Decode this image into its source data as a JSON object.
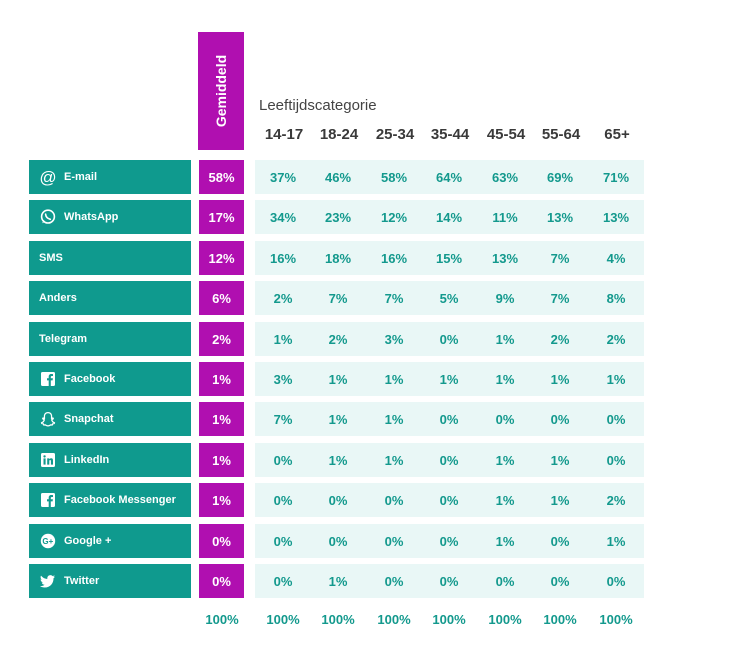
{
  "avg_header": "Gemiddeld",
  "category_title": "Leeftijdscategorie",
  "colors": {
    "teal": "#0f9a8e",
    "magenta": "#b00fb0",
    "cell_bg": "#e9f7f6",
    "value_text": "#13998d"
  },
  "chart_data": {
    "type": "table",
    "columns": [
      "14-17",
      "18-24",
      "25-34",
      "35-44",
      "45-54",
      "55-64",
      "65+"
    ],
    "rows": [
      {
        "label": "E-mail",
        "icon": "at-sign-icon",
        "avg": "58%",
        "values": [
          "37%",
          "46%",
          "58%",
          "64%",
          "63%",
          "69%",
          "71%"
        ]
      },
      {
        "label": "WhatsApp",
        "icon": "whatsapp-icon",
        "avg": "17%",
        "values": [
          "34%",
          "23%",
          "12%",
          "14%",
          "11%",
          "13%",
          "13%"
        ]
      },
      {
        "label": "SMS",
        "icon": "",
        "avg": "12%",
        "values": [
          "16%",
          "18%",
          "16%",
          "15%",
          "13%",
          "7%",
          "4%"
        ]
      },
      {
        "label": "Anders",
        "icon": "",
        "avg": "6%",
        "values": [
          "2%",
          "7%",
          "7%",
          "5%",
          "9%",
          "7%",
          "8%"
        ]
      },
      {
        "label": "Telegram",
        "icon": "",
        "avg": "2%",
        "values": [
          "1%",
          "2%",
          "3%",
          "0%",
          "1%",
          "2%",
          "2%"
        ]
      },
      {
        "label": "Facebook",
        "icon": "facebook-icon",
        "avg": "1%",
        "values": [
          "3%",
          "1%",
          "1%",
          "1%",
          "1%",
          "1%",
          "1%"
        ]
      },
      {
        "label": "Snapchat",
        "icon": "snapchat-icon",
        "avg": "1%",
        "values": [
          "7%",
          "1%",
          "1%",
          "0%",
          "0%",
          "0%",
          "0%"
        ]
      },
      {
        "label": "LinkedIn",
        "icon": "linkedin-icon",
        "avg": "1%",
        "values": [
          "0%",
          "1%",
          "1%",
          "0%",
          "1%",
          "1%",
          "0%"
        ]
      },
      {
        "label": "Facebook Messenger",
        "icon": "facebook-icon",
        "avg": "1%",
        "values": [
          "0%",
          "0%",
          "0%",
          "0%",
          "1%",
          "1%",
          "2%"
        ]
      },
      {
        "label": "Google +",
        "icon": "google-plus-icon",
        "avg": "0%",
        "values": [
          "0%",
          "0%",
          "0%",
          "0%",
          "1%",
          "0%",
          "1%"
        ]
      },
      {
        "label": "Twitter",
        "icon": "twitter-icon",
        "avg": "0%",
        "values": [
          "0%",
          "1%",
          "0%",
          "0%",
          "0%",
          "0%",
          "0%"
        ]
      }
    ],
    "totals": {
      "avg": "100%",
      "values": [
        "100%",
        "100%",
        "100%",
        "100%",
        "100%",
        "100%",
        "100%"
      ]
    }
  }
}
